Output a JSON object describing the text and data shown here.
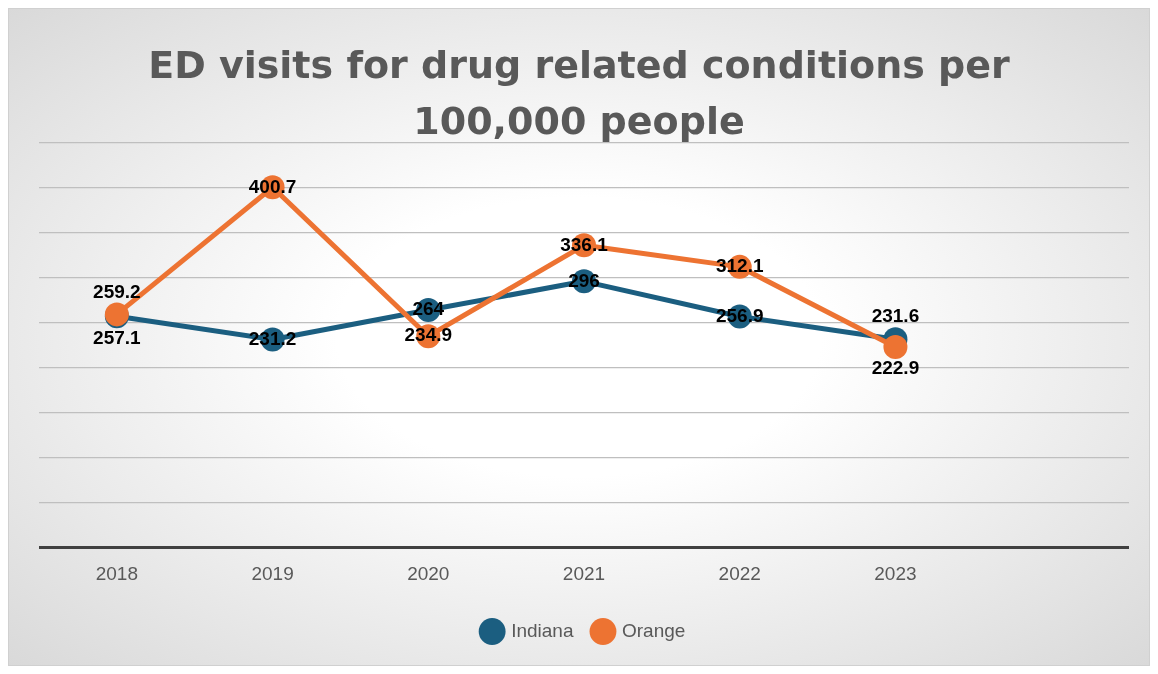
{
  "chart_data": {
    "type": "line",
    "title": "ED visits for drug related conditions per 100,000 people",
    "categories": [
      "2018",
      "2019",
      "2020",
      "2021",
      "2022",
      "2023",
      null
    ],
    "series": [
      {
        "name": "Indiana",
        "color": "#1b5e80",
        "values": [
          257.1,
          231.2,
          264,
          296,
          256.9,
          231.6,
          null
        ]
      },
      {
        "name": "Orange",
        "color": "#ed7332",
        "values": [
          259.2,
          400.7,
          234.9,
          336.1,
          312.1,
          222.9,
          null
        ]
      }
    ],
    "ylim": [
      0,
      450
    ],
    "yticks": [
      {
        "value": 0,
        "label": null
      },
      {
        "value": 50,
        "label": null
      },
      {
        "value": 100,
        "label": null
      },
      {
        "value": 150,
        "label": null
      },
      {
        "value": 200,
        "label": null
      },
      {
        "value": 250,
        "label": null
      },
      {
        "value": 300,
        "label": null
      },
      {
        "value": 350,
        "label": null
      },
      {
        "value": 400,
        "label": null
      },
      {
        "value": 450,
        "label": null
      }
    ],
    "tick_labels": "x",
    "grid": "y",
    "legend": "bottom",
    "marker": "circle",
    "line_style": "solid",
    "data_labels": true
  }
}
